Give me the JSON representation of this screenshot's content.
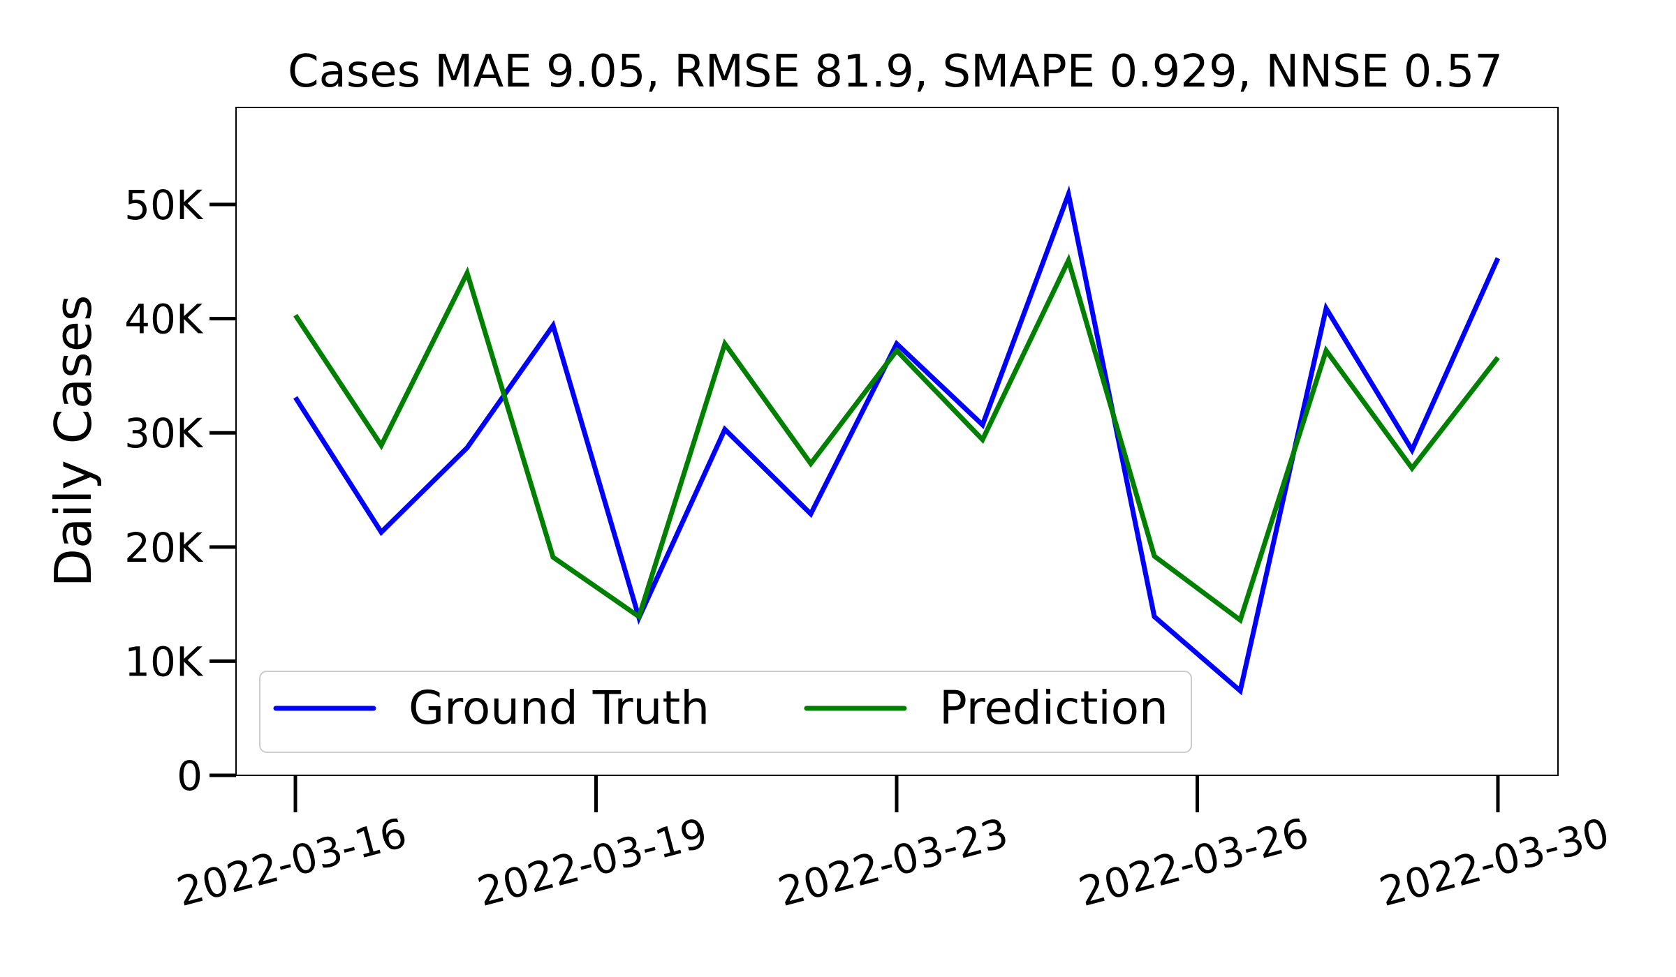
{
  "chart_data": {
    "type": "line",
    "title": "Cases MAE 9.05, RMSE 81.9, SMAPE 0.929, NNSE 0.57",
    "xlabel": "",
    "ylabel": "Daily Cases",
    "x": [
      "2022-03-16",
      "2022-03-17",
      "2022-03-18",
      "2022-03-19",
      "2022-03-20",
      "2022-03-21",
      "2022-03-22",
      "2022-03-23",
      "2022-03-24",
      "2022-03-25",
      "2022-03-26",
      "2022-03-27",
      "2022-03-28",
      "2022-03-29",
      "2022-03-30"
    ],
    "x_tick_labels": [
      "2022-03-16",
      "2022-03-19",
      "2022-03-23",
      "2022-03-26",
      "2022-03-30"
    ],
    "x_tick_index": [
      0,
      3.5,
      7,
      10.5,
      14
    ],
    "y_ticks": [
      0,
      10000,
      20000,
      30000,
      40000,
      50000
    ],
    "y_tick_labels": [
      "0",
      "10K",
      "20K",
      "30K",
      "40K",
      "50K"
    ],
    "ylim": [
      0,
      58500
    ],
    "grid": false,
    "legend_position": "lower-left",
    "series": [
      {
        "name": "Ground Truth",
        "color": "#0000ff",
        "values": [
          33100,
          21300,
          28700,
          39400,
          13800,
          30300,
          22900,
          37800,
          30700,
          50900,
          13900,
          7400,
          40900,
          28500,
          45300
        ]
      },
      {
        "name": "Prediction",
        "color": "#008000",
        "values": [
          40300,
          28900,
          44000,
          19100,
          13900,
          37800,
          27300,
          37200,
          29400,
          45100,
          19200,
          13600,
          37200,
          26900,
          36600
        ]
      }
    ]
  }
}
